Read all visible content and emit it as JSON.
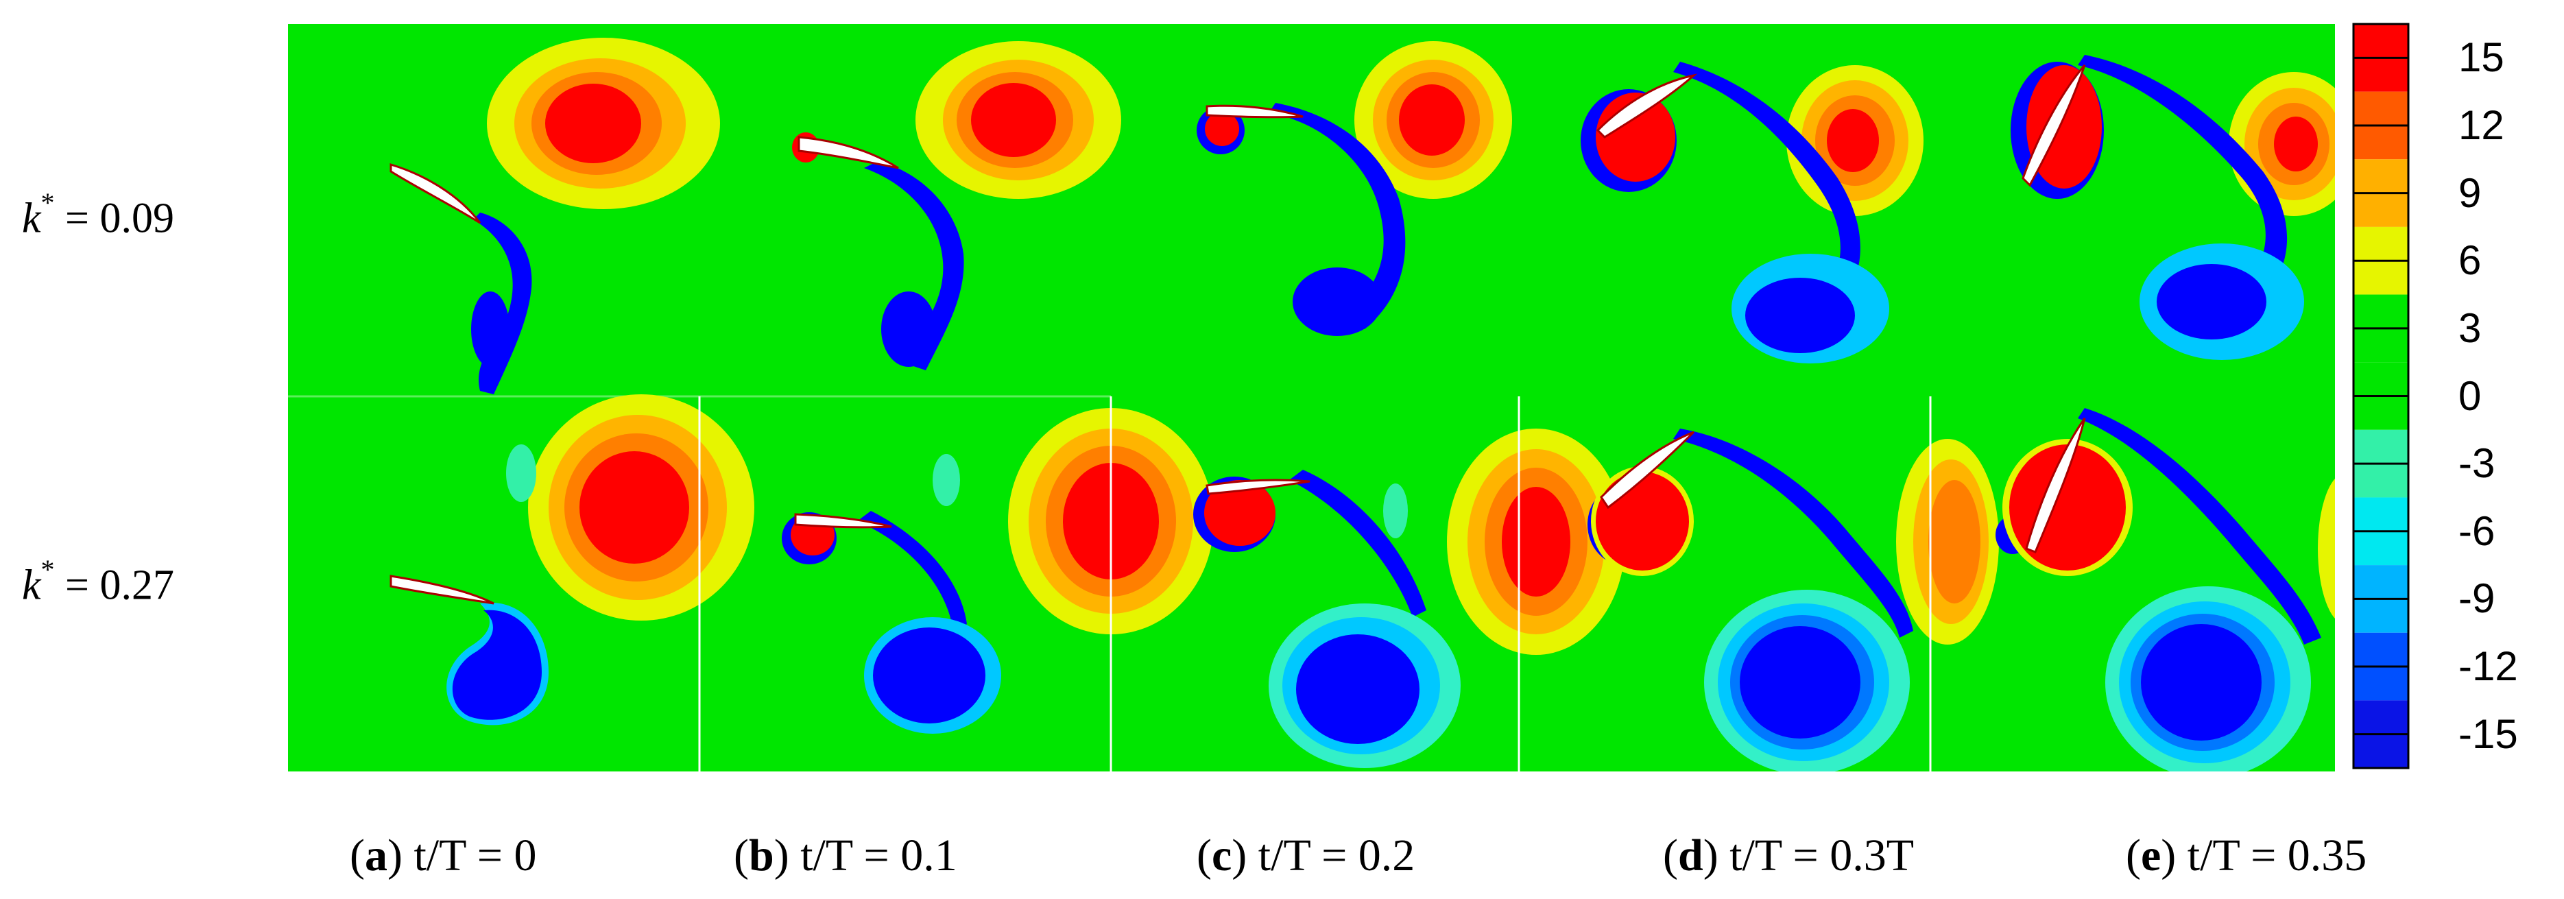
{
  "rows": [
    {
      "symbol": "k",
      "sup": "*",
      "value": "= 0.09"
    },
    {
      "symbol": "k",
      "sup": "*",
      "value": "= 0.27"
    }
  ],
  "captions": [
    {
      "letter": "a",
      "text": "t/T = 0"
    },
    {
      "letter": "b",
      "text": "t/T = 0.1"
    },
    {
      "letter": "c",
      "text": "t/T = 0.2"
    },
    {
      "letter": "d",
      "text": "t/T = 0.3T"
    },
    {
      "letter": "e",
      "text": "t/T = 0.35"
    }
  ],
  "colorbar": {
    "ticks": [
      "15",
      "12",
      "9",
      "6",
      "3",
      "0",
      "-3",
      "-6",
      "-9",
      "-12",
      "-15"
    ],
    "colors": [
      "#ff0000",
      "#ff5a00",
      "#ffb000",
      "#e6f500",
      "#00e600",
      "#00e600",
      "#33f0a8",
      "#00e8f0",
      "#00b4ff",
      "#0050ff",
      "#0a14e6"
    ]
  },
  "colors": {
    "background_green": "#00e600",
    "pos_red": "#ff0000",
    "pos_orange": "#ff7f00",
    "pos_amber": "#ffb400",
    "pos_yellow": "#e6f500",
    "neg_blue": "#0000ff",
    "neg_mid": "#0078ff",
    "neg_light": "#00c8ff",
    "neg_cyan": "#33f0c8"
  }
}
